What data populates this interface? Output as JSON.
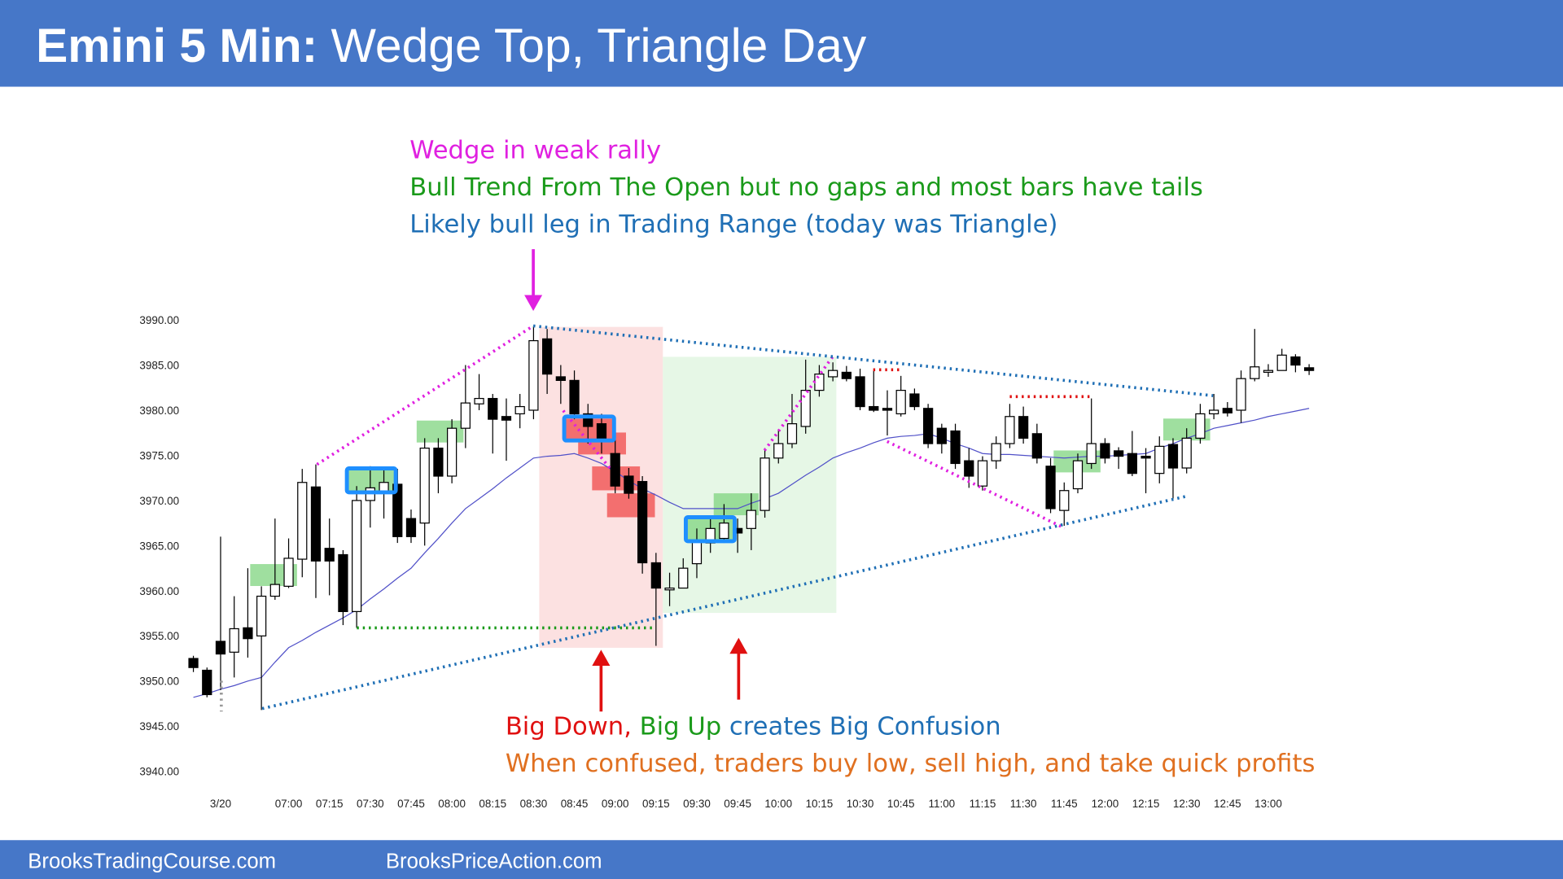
{
  "header": {
    "title_bold": "Emini 5 Min:",
    "title": "Wedge Top, Triangle Day"
  },
  "annotations": {
    "top": [
      {
        "text": "Wedge in weak rally",
        "color": "#e020e0"
      },
      {
        "text": "Bull Trend From The Open but no gaps and most bars have tails",
        "color": "#1a9a1a"
      },
      {
        "text": "Likely bull leg in Trading Range (today was Triangle)",
        "color": "#1f6fb5"
      }
    ],
    "bottom": [
      {
        "parts": [
          {
            "text": "Big Down,",
            "color": "#e01010"
          },
          {
            "text": "Big Up",
            "color": "#1a9a1a"
          },
          {
            "text": "creates Big Confusion",
            "color": "#1f6fb5"
          }
        ]
      },
      {
        "parts": [
          {
            "text": "When confused, traders buy low, sell high, and take quick profits",
            "color": "#e07020"
          }
        ]
      }
    ]
  },
  "chart_data": {
    "type": "candlestick",
    "categories": [
      null,
      null,
      "3/20",
      null,
      null,
      null,
      null,
      "07:00",
      null,
      null,
      "07:15",
      null,
      null,
      "07:30",
      null,
      null,
      "07:45",
      null,
      null,
      "08:00",
      null,
      null,
      "08:15",
      null,
      null,
      "08:30",
      null,
      null,
      "08:45",
      null,
      null,
      "09:00",
      null,
      null,
      "09:15",
      null,
      null,
      "09:30",
      null,
      null,
      "09:45",
      null,
      null,
      "10:00",
      null,
      null,
      "10:15",
      null,
      null,
      "10:30",
      null,
      null,
      "10:45",
      null,
      null,
      "11:00",
      null,
      null,
      "11:15",
      null,
      null,
      "11:30",
      null,
      null,
      "11:45",
      null,
      null,
      "12:00",
      null,
      null,
      "12:15",
      null,
      null,
      "12:30",
      null,
      null,
      "12:45",
      null,
      null,
      "13:00",
      null,
      null,
      null
    ],
    "open": [
      3952.5,
      3951.2,
      3954.4,
      3953.2,
      3955.9,
      3955,
      3959.4,
      3960.5,
      3963.5,
      3971.5,
      3964.7,
      3964,
      3957.7,
      3970,
      3970.8,
      3971.8,
      3968,
      3967.5,
      3975.8,
      3972.7,
      3978,
      3980.7,
      3981.3,
      3979.3,
      3979.6,
      3980,
      3987.9,
      3983.7,
      3983.3,
      3979.6,
      3978.5,
      3975.2,
      3972.7,
      3972.1,
      3963.1,
      3960.1,
      3960.3,
      3963,
      3965.3,
      3965.8,
      3966.9,
      3966.9,
      3968.9,
      3974.7,
      3976.3,
      3978.2,
      3982.2,
      3983.7,
      3984.2,
      3983.7,
      3980.4,
      3980.2,
      3979.6,
      3981.8,
      3980.2,
      3978,
      3977.7,
      3974.4,
      3971.6,
      3974.4,
      3976.3,
      3979.3,
      3977.4,
      3973.8,
      3968.9,
      3971.3,
      3974.1,
      3976.3,
      3975.5,
      3975.2,
      3974.9,
      3973,
      3976.2,
      3973.6,
      3976.9,
      3979.6,
      3980.2,
      3980,
      3983.5,
      3984.2,
      3984.4,
      3985.9,
      3984.7
    ],
    "high": [
      3952.8,
      3951.5,
      3966,
      3959.4,
      3962.5,
      3960.5,
      3968,
      3965.8,
      3973.5,
      3974,
      3968,
      3964.5,
      3971.6,
      3973.8,
      3973.5,
      3973.5,
      3969,
      3976.9,
      3976.9,
      3979,
      3985,
      3984,
      3981.8,
      3981.3,
      3981.8,
      3989.3,
      3989,
      3985,
      3984.4,
      3980.7,
      3979.6,
      3976.9,
      3973.6,
      3972.7,
      3964.2,
      3962,
      3963.6,
      3966.9,
      3968,
      3969.6,
      3968,
      3970.8,
      3975.8,
      3977.9,
      3981.8,
      3985.6,
      3985,
      3985.3,
      3984.9,
      3984.6,
      3984.4,
      3982.2,
      3983.8,
      3982.4,
      3980.7,
      3978.5,
      3978.5,
      3975.8,
      3974.9,
      3977.1,
      3980.7,
      3980.4,
      3978.5,
      3974.7,
      3972,
      3975.2,
      3981.3,
      3976.9,
      3975.9,
      3977.7,
      3975.8,
      3977.1,
      3976.9,
      3978,
      3980.7,
      3981.8,
      3980.9,
      3984.4,
      3989,
      3985.1,
      3986.8,
      3986.2,
      3985.1
    ],
    "low": [
      3951,
      3948.2,
      3949,
      3950.4,
      3952.6,
      3946.8,
      3959,
      3960.3,
      3961.5,
      3959.2,
      3959.5,
      3956.2,
      3955.9,
      3967,
      3968,
      3965.3,
      3965.3,
      3965,
      3970.8,
      3971.9,
      3975.8,
      3980,
      3975.2,
      3974.4,
      3978,
      3979,
      3981.8,
      3980.7,
      3979,
      3976.3,
      3975.2,
      3970.8,
      3970.2,
      3961.9,
      3953.9,
      3958.3,
      3960.7,
      3961.4,
      3964.2,
      3965.3,
      3964.2,
      3964.5,
      3968.1,
      3974.1,
      3975.8,
      3977.4,
      3981.5,
      3983.2,
      3983.2,
      3980,
      3979.8,
      3977.2,
      3979.3,
      3980,
      3975.8,
      3975.2,
      3973.5,
      3971.4,
      3971.1,
      3973.5,
      3975.8,
      3976.3,
      3974.1,
      3968.6,
      3967.2,
      3970.8,
      3973.5,
      3974.1,
      3973.5,
      3972.7,
      3970.8,
      3971.9,
      3970.2,
      3973,
      3976.3,
      3979,
      3979.3,
      3978.6,
      3983.2,
      3983.7,
      3984.4,
      3984.2,
      3983.9
    ],
    "close": [
      3951.5,
      3948.5,
      3953,
      3955.8,
      3954.7,
      3959.4,
      3960.7,
      3963.6,
      3972,
      3963.3,
      3963.3,
      3957.7,
      3970,
      3971.4,
      3972,
      3966,
      3966,
      3975.8,
      3972.7,
      3978,
      3980.8,
      3981.3,
      3979,
      3978.9,
      3980.4,
      3987.7,
      3984,
      3983.3,
      3979.6,
      3978.2,
      3976.9,
      3971.6,
      3970.8,
      3963.1,
      3960.3,
      3960.3,
      3962.5,
      3965.6,
      3966.9,
      3967.5,
      3966.4,
      3968.9,
      3974.7,
      3976.3,
      3978.5,
      3982.2,
      3984,
      3984.4,
      3983.5,
      3980.4,
      3980,
      3980,
      3982.2,
      3980.4,
      3976.3,
      3976.3,
      3974.1,
      3972.7,
      3974.4,
      3976.3,
      3979.3,
      3976.9,
      3974.7,
      3969.1,
      3971.1,
      3974.4,
      3976.3,
      3974.7,
      3974.9,
      3973,
      3974.7,
      3976,
      3973.6,
      3976.9,
      3979.6,
      3980,
      3979.7,
      3983.5,
      3984.8,
      3984.4,
      3986.1,
      3985,
      3984.4
    ],
    "up_color": "#ffffff",
    "down_color": "#000000",
    "wick_color": "#000000",
    "ema": {
      "color": "#5050c8",
      "values": [
        3948.2,
        3948.6,
        3949.1,
        3949.5,
        3950.0,
        3950.4,
        3952.1,
        3953.7,
        3954.5,
        3955.4,
        3956.2,
        3957.0,
        3957.9,
        3959.1,
        3960.2,
        3961.4,
        3962.5,
        3964.2,
        3965.8,
        3967.5,
        3969.1,
        3970.2,
        3971.3,
        3972.5,
        3973.6,
        3974.7,
        3974.9,
        3975.0,
        3975.2,
        3974.7,
        3974.1,
        3973.2,
        3972.2,
        3971.3,
        3970.6,
        3969.8,
        3969.1,
        3969.1,
        3969.1,
        3969.1,
        3969.1,
        3969.7,
        3970.2,
        3970.8,
        3971.8,
        3972.8,
        3973.7,
        3974.7,
        3975.3,
        3975.8,
        3976.4,
        3976.9,
        3977.1,
        3977.2,
        3977.4,
        3976.9,
        3976.3,
        3975.8,
        3975.2,
        3975.1,
        3975.1,
        3975.0,
        3974.9,
        3974.8,
        3974.7,
        3974.8,
        3974.9,
        3974.9,
        3975.0,
        3975.1,
        3975.2,
        3975.8,
        3976.3,
        3976.9,
        3977.4,
        3978.0,
        3978.3,
        3978.6,
        3978.9,
        3979.3,
        3979.6,
        3979.9,
        3980.2
      ]
    },
    "ylim": [
      3940,
      3990
    ],
    "yticks": [
      {
        "value": 3940,
        "label": "3940.00"
      },
      {
        "value": 3945,
        "label": "3945.00"
      },
      {
        "value": 3950,
        "label": "3950.00"
      },
      {
        "value": 3955,
        "label": "3955.00"
      },
      {
        "value": 3960,
        "label": "3960.00"
      },
      {
        "value": 3965,
        "label": "3965.00"
      },
      {
        "value": 3970,
        "label": "3970.00"
      },
      {
        "value": 3975,
        "label": "3975.00"
      },
      {
        "value": 3980,
        "label": "3980.00"
      },
      {
        "value": 3985,
        "label": "3985.00"
      },
      {
        "value": 3990,
        "label": "3990.00"
      }
    ],
    "grid": false
  },
  "footer": {
    "left": "BrooksTradingCourse.com",
    "right": "BrooksPriceAction.com"
  }
}
